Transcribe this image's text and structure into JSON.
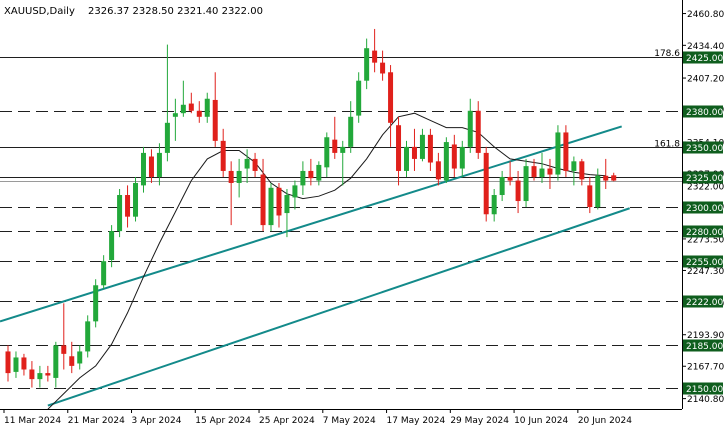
{
  "chart_data": {
    "type": "candlestick",
    "symbol": "XAUUSD,Daily",
    "ohlc_header": "2326.37 2328.50 2321.40 2322.00",
    "current_price_label": "2322.00",
    "ylim": [
      2133,
      2465
    ],
    "y_ticks": [
      "2460.80",
      "2434.40",
      "2407.20",
      "2381.30",
      "2354.10",
      "2327.90",
      "2300.70",
      "2273.50",
      "2247.30",
      "2220.10",
      "2193.90",
      "2167.70",
      "2140.80"
    ],
    "x_ticks": [
      {
        "bar": 0,
        "label": "11 Mar 2024"
      },
      {
        "bar": 8,
        "label": "21 Mar 2024"
      },
      {
        "bar": 16,
        "label": "3 Apr 2024"
      },
      {
        "bar": 24,
        "label": "15 Apr 2024"
      },
      {
        "bar": 32,
        "label": "25 Apr 2024"
      },
      {
        "bar": 40,
        "label": "7 May 2024"
      },
      {
        "bar": 48,
        "label": "17 May 2024"
      },
      {
        "bar": 56,
        "label": "29 May 2024"
      },
      {
        "bar": 64,
        "label": "10 Jun 2024"
      },
      {
        "bar": 72,
        "label": "20 Jun 2024"
      }
    ],
    "levels": [
      {
        "label": "2425.00",
        "price": 2425,
        "style": "solid"
      },
      {
        "label": "2380.00",
        "price": 2380,
        "style": "dashed"
      },
      {
        "label": "2350.00",
        "price": 2350,
        "style": "solid"
      },
      {
        "label": "2325.00",
        "price": 2325,
        "style": "solid"
      },
      {
        "label": "2300.00",
        "price": 2300,
        "style": "dashed"
      },
      {
        "label": "2280.00",
        "price": 2280,
        "style": "dashed"
      },
      {
        "label": "2255.00",
        "price": 2255,
        "style": "dashed"
      },
      {
        "label": "2222.00",
        "price": 2222,
        "style": "dashed"
      },
      {
        "label": "2185.00",
        "price": 2185,
        "style": "dashed"
      },
      {
        "label": "2150.00",
        "price": 2150,
        "style": "dashed"
      }
    ],
    "fib_labels": [
      {
        "label": "178.6",
        "price": 2428
      },
      {
        "label": "161.8",
        "price": 2353
      }
    ],
    "trendlines": [
      {
        "from": [
          -1,
          2205
        ],
        "to": [
          77,
          2367
        ]
      },
      {
        "from": [
          5,
          2135
        ],
        "to": [
          78,
          2299
        ]
      }
    ],
    "ma_curve": [
      [
        5,
        2132
      ],
      [
        7,
        2145
      ],
      [
        9,
        2158
      ],
      [
        11,
        2168
      ],
      [
        13,
        2186
      ],
      [
        15,
        2212
      ],
      [
        17,
        2242
      ],
      [
        19,
        2270
      ],
      [
        21,
        2296
      ],
      [
        23,
        2322
      ],
      [
        25,
        2340
      ],
      [
        27,
        2347
      ],
      [
        29,
        2347
      ],
      [
        31,
        2337
      ],
      [
        33,
        2320
      ],
      [
        35,
        2311
      ],
      [
        37,
        2307
      ],
      [
        39,
        2309
      ],
      [
        41,
        2314
      ],
      [
        43,
        2324
      ],
      [
        45,
        2340
      ],
      [
        47,
        2360
      ],
      [
        49,
        2375
      ],
      [
        51,
        2378
      ],
      [
        53,
        2372
      ],
      [
        55,
        2366
      ],
      [
        57,
        2366
      ],
      [
        59,
        2362
      ],
      [
        61,
        2350
      ],
      [
        63,
        2340
      ],
      [
        65,
        2338
      ],
      [
        67,
        2336
      ],
      [
        69,
        2332
      ],
      [
        71,
        2329
      ],
      [
        73,
        2327
      ],
      [
        75,
        2326
      ]
    ],
    "candles": [
      [
        2180,
        2185,
        2155,
        2162
      ],
      [
        2163,
        2180,
        2158,
        2175
      ],
      [
        2175,
        2178,
        2160,
        2165
      ],
      [
        2165,
        2172,
        2150,
        2157
      ],
      [
        2157,
        2168,
        2150,
        2162
      ],
      [
        2162,
        2168,
        2155,
        2160
      ],
      [
        2158,
        2188,
        2150,
        2185
      ],
      [
        2185,
        2220,
        2165,
        2178
      ],
      [
        2176,
        2188,
        2162,
        2168
      ],
      [
        2170,
        2185,
        2165,
        2180
      ],
      [
        2180,
        2210,
        2175,
        2205
      ],
      [
        2205,
        2240,
        2200,
        2235
      ],
      [
        2235,
        2260,
        2232,
        2255
      ],
      [
        2256,
        2285,
        2250,
        2280
      ],
      [
        2280,
        2315,
        2275,
        2310
      ],
      [
        2310,
        2318,
        2283,
        2292
      ],
      [
        2292,
        2325,
        2288,
        2320
      ],
      [
        2318,
        2350,
        2312,
        2345
      ],
      [
        2342,
        2348,
        2320,
        2325
      ],
      [
        2325,
        2353,
        2318,
        2345
      ],
      [
        2345,
        2435,
        2338,
        2370
      ],
      [
        2375,
        2390,
        2355,
        2378
      ],
      [
        2378,
        2405,
        2375,
        2385
      ],
      [
        2386,
        2395,
        2378,
        2380
      ],
      [
        2380,
        2388,
        2370,
        2375
      ],
      [
        2375,
        2395,
        2370,
        2390
      ],
      [
        2389,
        2412,
        2350,
        2355
      ],
      [
        2355,
        2365,
        2325,
        2330
      ],
      [
        2330,
        2338,
        2285,
        2320
      ],
      [
        2320,
        2340,
        2308,
        2330
      ],
      [
        2332,
        2348,
        2320,
        2340
      ],
      [
        2340,
        2345,
        2325,
        2330
      ],
      [
        2327,
        2340,
        2280,
        2285
      ],
      [
        2285,
        2320,
        2280,
        2316
      ],
      [
        2316,
        2320,
        2283,
        2293
      ],
      [
        2295,
        2315,
        2275,
        2310
      ],
      [
        2308,
        2322,
        2298,
        2318
      ],
      [
        2318,
        2338,
        2310,
        2330
      ],
      [
        2330,
        2340,
        2318,
        2324
      ],
      [
        2322,
        2338,
        2318,
        2335
      ],
      [
        2333,
        2362,
        2325,
        2358
      ],
      [
        2356,
        2375,
        2340,
        2345
      ],
      [
        2345,
        2355,
        2318,
        2350
      ],
      [
        2350,
        2388,
        2345,
        2375
      ],
      [
        2376,
        2412,
        2370,
        2405
      ],
      [
        2405,
        2440,
        2398,
        2432
      ],
      [
        2430,
        2448,
        2412,
        2420
      ],
      [
        2420,
        2430,
        2405,
        2411
      ],
      [
        2412,
        2418,
        2350,
        2370
      ],
      [
        2368,
        2375,
        2318,
        2330
      ],
      [
        2330,
        2355,
        2325,
        2350
      ],
      [
        2350,
        2365,
        2330,
        2340
      ],
      [
        2340,
        2365,
        2338,
        2360
      ],
      [
        2360,
        2365,
        2330,
        2337
      ],
      [
        2338,
        2345,
        2318,
        2323
      ],
      [
        2322,
        2358,
        2320,
        2354
      ],
      [
        2352,
        2360,
        2325,
        2332
      ],
      [
        2332,
        2355,
        2325,
        2350
      ],
      [
        2350,
        2390,
        2345,
        2380
      ],
      [
        2380,
        2388,
        2340,
        2345
      ],
      [
        2345,
        2350,
        2288,
        2294
      ],
      [
        2294,
        2315,
        2288,
        2310
      ],
      [
        2310,
        2330,
        2305,
        2325
      ],
      [
        2325,
        2338,
        2318,
        2322
      ],
      [
        2322,
        2330,
        2295,
        2305
      ],
      [
        2305,
        2340,
        2300,
        2334
      ],
      [
        2334,
        2340,
        2322,
        2325
      ],
      [
        2325,
        2345,
        2320,
        2332
      ],
      [
        2332,
        2340,
        2315,
        2327
      ],
      [
        2327,
        2368,
        2322,
        2362
      ],
      [
        2362,
        2368,
        2325,
        2330
      ],
      [
        2330,
        2342,
        2318,
        2338
      ],
      [
        2338,
        2340,
        2318,
        2323
      ],
      [
        2318,
        2325,
        2295,
        2300
      ],
      [
        2300,
        2332,
        2298,
        2326
      ],
      [
        2326,
        2340,
        2315,
        2322
      ],
      [
        2326.37,
        2328.5,
        2321.4,
        2322
      ]
    ]
  }
}
